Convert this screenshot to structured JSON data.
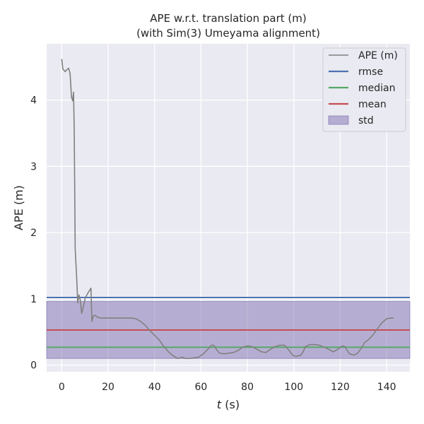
{
  "chart_data": {
    "type": "line",
    "title": "APE w.r.t. translation part (m)",
    "subtitle": "(with Sim(3) Umeyama alignment)",
    "xlabel_italic": "t",
    "xlabel_unit": " (s)",
    "ylabel": "APE (m)",
    "xlim": [
      -6.5,
      150
    ],
    "ylim": [
      -0.1,
      4.85
    ],
    "xticks": [
      0,
      20,
      40,
      60,
      80,
      100,
      120,
      140
    ],
    "yticks": [
      0,
      1,
      2,
      3,
      4
    ],
    "grid": true,
    "legend_position": "top-right",
    "series": [
      {
        "name": "APE (m)",
        "kind": "line",
        "color": "#808080",
        "points": [
          [
            0.0,
            4.62
          ],
          [
            0.5,
            4.47
          ],
          [
            1.5,
            4.43
          ],
          [
            2.5,
            4.47
          ],
          [
            3.0,
            4.48
          ],
          [
            3.6,
            4.4
          ],
          [
            4.2,
            4.05
          ],
          [
            4.7,
            3.99
          ],
          [
            5.1,
            4.12
          ],
          [
            5.4,
            3.5
          ],
          [
            5.8,
            1.75
          ],
          [
            6.4,
            1.35
          ],
          [
            6.9,
            0.94
          ],
          [
            7.4,
            1.06
          ],
          [
            8.0,
            0.98
          ],
          [
            8.6,
            0.78
          ],
          [
            9.3,
            0.88
          ],
          [
            10.2,
            1.02
          ],
          [
            11.5,
            1.1
          ],
          [
            12.6,
            1.16
          ],
          [
            13.0,
            0.66
          ],
          [
            13.6,
            0.74
          ],
          [
            14.5,
            0.75
          ],
          [
            15.5,
            0.72
          ],
          [
            17.0,
            0.71
          ],
          [
            20.0,
            0.71
          ],
          [
            25.0,
            0.71
          ],
          [
            30.0,
            0.71
          ],
          [
            32.0,
            0.7
          ],
          [
            34.0,
            0.66
          ],
          [
            36.0,
            0.6
          ],
          [
            38.0,
            0.52
          ],
          [
            40.0,
            0.45
          ],
          [
            42.0,
            0.38
          ],
          [
            44.0,
            0.28
          ],
          [
            46.0,
            0.2
          ],
          [
            48.0,
            0.14
          ],
          [
            50.0,
            0.1
          ],
          [
            52.0,
            0.12
          ],
          [
            53.0,
            0.1
          ],
          [
            55.0,
            0.1
          ],
          [
            57.0,
            0.11
          ],
          [
            59.0,
            0.12
          ],
          [
            61.0,
            0.17
          ],
          [
            63.0,
            0.24
          ],
          [
            64.5,
            0.3
          ],
          [
            65.5,
            0.3
          ],
          [
            67.0,
            0.22
          ],
          [
            68.0,
            0.18
          ],
          [
            70.0,
            0.17
          ],
          [
            72.0,
            0.18
          ],
          [
            74.0,
            0.19
          ],
          [
            76.0,
            0.22
          ],
          [
            78.0,
            0.27
          ],
          [
            80.0,
            0.29
          ],
          [
            82.0,
            0.28
          ],
          [
            84.0,
            0.24
          ],
          [
            86.0,
            0.2
          ],
          [
            88.0,
            0.19
          ],
          [
            90.0,
            0.24
          ],
          [
            92.0,
            0.28
          ],
          [
            94.0,
            0.3
          ],
          [
            96.0,
            0.3
          ],
          [
            98.0,
            0.22
          ],
          [
            99.5,
            0.15
          ],
          [
            101.0,
            0.13
          ],
          [
            103.0,
            0.15
          ],
          [
            104.0,
            0.2
          ],
          [
            105.0,
            0.28
          ],
          [
            107.0,
            0.31
          ],
          [
            109.0,
            0.31
          ],
          [
            111.0,
            0.3
          ],
          [
            113.0,
            0.27
          ],
          [
            115.0,
            0.24
          ],
          [
            117.0,
            0.2
          ],
          [
            119.0,
            0.24
          ],
          [
            121.0,
            0.29
          ],
          [
            122.0,
            0.28
          ],
          [
            123.0,
            0.22
          ],
          [
            124.0,
            0.17
          ],
          [
            126.0,
            0.15
          ],
          [
            127.5,
            0.18
          ],
          [
            129.0,
            0.25
          ],
          [
            130.5,
            0.34
          ],
          [
            132.0,
            0.38
          ],
          [
            134.0,
            0.45
          ],
          [
            136.0,
            0.55
          ],
          [
            138.0,
            0.64
          ],
          [
            140.0,
            0.7
          ],
          [
            142.0,
            0.71
          ],
          [
            143.0,
            0.71
          ]
        ]
      },
      {
        "name": "rmse",
        "kind": "hline",
        "color": "#4c72b0",
        "value": 1.02
      },
      {
        "name": "median",
        "kind": "hline",
        "color": "#55a868",
        "value": 0.27
      },
      {
        "name": "mean",
        "kind": "hline",
        "color": "#c44e52",
        "value": 0.53
      },
      {
        "name": "std",
        "kind": "band",
        "color": "#8172b2",
        "range": [
          0.1,
          0.96
        ]
      }
    ]
  }
}
